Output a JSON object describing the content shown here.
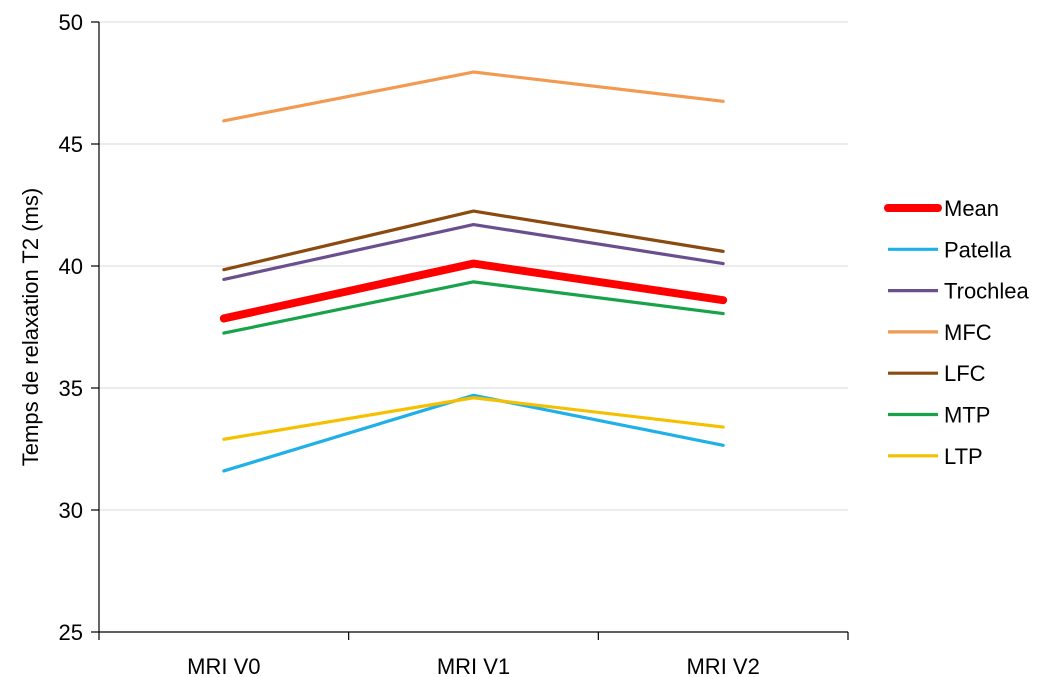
{
  "chart_data": {
    "type": "line",
    "categories": [
      "MRI V0",
      "MRI V1",
      "MRI V2"
    ],
    "ylabel": "Temps de relaxation T2 (ms)",
    "xlabel": "",
    "ylim": [
      25,
      50
    ],
    "yticks": [
      25,
      30,
      35,
      40,
      45,
      50
    ],
    "grid": "horizontal",
    "legend_position": "right",
    "series": [
      {
        "name": "Mean",
        "values": [
          37.85,
          40.1,
          38.6
        ],
        "color": "#ff0000",
        "emphasized": true
      },
      {
        "name": "Patella",
        "values": [
          31.6,
          34.7,
          32.65
        ],
        "color": "#1fb0e8"
      },
      {
        "name": "Trochlea",
        "values": [
          39.45,
          41.7,
          40.1
        ],
        "color": "#6a4f8f"
      },
      {
        "name": "MFC",
        "values": [
          45.95,
          47.95,
          46.75
        ],
        "color": "#f29a52"
      },
      {
        "name": "LFC",
        "values": [
          39.85,
          42.25,
          40.6
        ],
        "color": "#8b4a10"
      },
      {
        "name": "MTP",
        "values": [
          37.25,
          39.35,
          38.05
        ],
        "color": "#17a34a"
      },
      {
        "name": "LTP",
        "values": [
          32.9,
          34.6,
          33.4
        ],
        "color": "#f5c000"
      }
    ]
  }
}
